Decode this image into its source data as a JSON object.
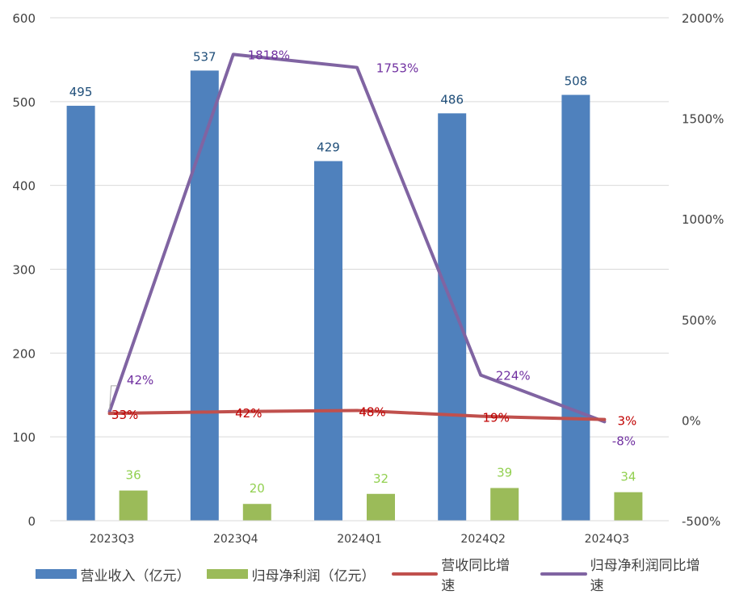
{
  "chart_data": {
    "type": "bar+line",
    "categories": [
      "2023Q3",
      "2023Q4",
      "2024Q1",
      "2024Q2",
      "2024Q3"
    ],
    "series": [
      {
        "name": "营业收入（亿元）",
        "kind": "bar",
        "axis": "left",
        "color": "#4f81bd",
        "label_color": "#1f4e79",
        "values": [
          495,
          537,
          429,
          486,
          508
        ],
        "labels": [
          "495",
          "537",
          "429",
          "486",
          "508"
        ]
      },
      {
        "name": "归母净利润（亿元）",
        "kind": "bar",
        "axis": "left",
        "color": "#9bbb59",
        "label_color": "#92d050",
        "values": [
          36,
          20,
          32,
          39,
          34
        ],
        "labels": [
          "36",
          "20",
          "32",
          "39",
          "34"
        ]
      },
      {
        "name": "营收同比增速",
        "kind": "line",
        "axis": "right",
        "color": "#c0504d",
        "label_color": "#c00000",
        "values": [
          33,
          42,
          48,
          19,
          3
        ],
        "labels": [
          "33%",
          "42%",
          "48%",
          "19%",
          "3%"
        ]
      },
      {
        "name": "归母净利润同比增速",
        "kind": "line",
        "axis": "right",
        "color": "#8064a2",
        "label_color": "#7030a0",
        "values": [
          42,
          1818,
          1753,
          224,
          -8
        ],
        "labels": [
          "42%",
          "1818%",
          "1753%",
          "224%",
          "-8%"
        ]
      }
    ],
    "y_left": {
      "min": 0,
      "max": 600,
      "step": 100,
      "ticks": [
        "0",
        "100",
        "200",
        "300",
        "400",
        "500",
        "600"
      ]
    },
    "y_right": {
      "min": -500,
      "max": 2000,
      "step": 500,
      "ticks": [
        "-500%",
        "0%",
        "500%",
        "1000%",
        "1500%",
        "2000%"
      ]
    },
    "grid": true,
    "legend_position": "bottom"
  }
}
